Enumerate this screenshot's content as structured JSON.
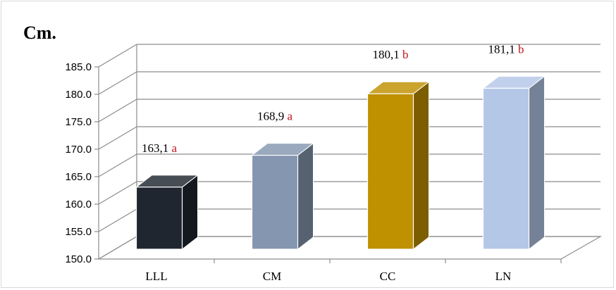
{
  "chart_data": {
    "type": "bar",
    "title": "",
    "ylabel": "Cm.",
    "xlabel": "",
    "categories": [
      "LLL",
      "CM",
      "CC",
      "LN"
    ],
    "values": [
      163.1,
      168.9,
      180.1,
      181.1
    ],
    "value_labels": [
      "163,1",
      "168,9",
      "180,1",
      "181,1"
    ],
    "group_letters": [
      "a",
      "a",
      "b",
      "b"
    ],
    "letter_color": "#c0141e",
    "bar_colors": [
      "#1f2630",
      "#8496b0",
      "#bf9000",
      "#b4c7e7"
    ],
    "ylim": [
      150,
      185
    ],
    "yticks": [
      "150.0",
      "155.0",
      "160.0",
      "165.0",
      "170.0",
      "175.0",
      "180.0",
      "185.0"
    ],
    "ytick_values": [
      150,
      155,
      160,
      165,
      170,
      175,
      180,
      185
    ],
    "grid": true,
    "legend": "none",
    "style": "3d-column"
  }
}
